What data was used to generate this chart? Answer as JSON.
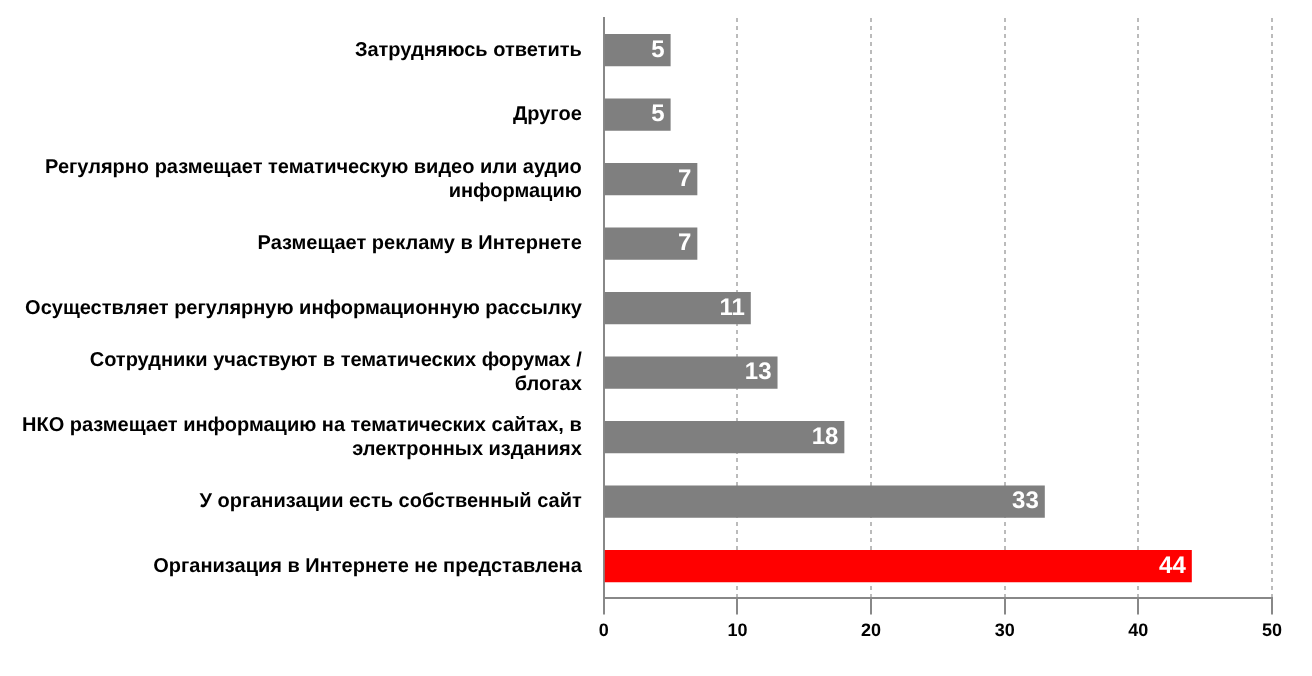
{
  "chart_data": {
    "type": "bar",
    "orientation": "horizontal",
    "categories": [
      "Затрудняюсь ответить",
      "Другое",
      "Регулярно размещает тематическую видео или аудио информацию",
      "Размещает рекламу в Интернете",
      "Осуществляет регулярную информационную рассылку",
      "Сотрудники участвуют в тематических форумах / блогах",
      "НКО размещает информацию на тематических сайтах, в электронных изданиях",
      "У организации есть собственный сайт",
      "Организация в Интернете не представлена"
    ],
    "values": [
      5,
      5,
      7,
      7,
      11,
      13,
      18,
      33,
      44
    ],
    "colors": [
      "#7f7f7f",
      "#7f7f7f",
      "#7f7f7f",
      "#7f7f7f",
      "#7f7f7f",
      "#7f7f7f",
      "#7f7f7f",
      "#7f7f7f",
      "#ff0000"
    ],
    "xlim": [
      0,
      50
    ],
    "xticks": [
      0,
      10,
      20,
      30,
      40,
      50
    ],
    "grid": "x",
    "data_labels": true,
    "legend": false
  }
}
